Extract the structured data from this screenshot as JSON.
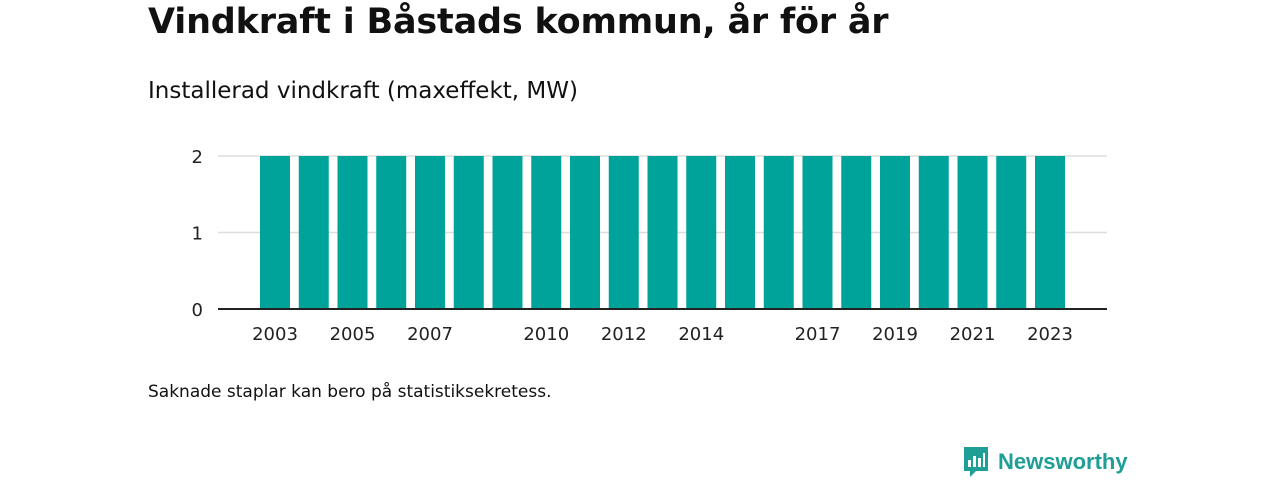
{
  "title": "Vindkraft i Båstads kommun, år för år",
  "subtitle": "Installerad vindkraft (maxeffekt, MW)",
  "note": "Saknade staplar kan bero på statistiksekretess.",
  "brand": {
    "name": "Newsworthy",
    "icon": "newsworthy-logo-icon",
    "color": "#1f9e96"
  },
  "colors": {
    "bar": "#00a39a",
    "grid": "#dddddd",
    "axis": "#222222",
    "tick_text": "#222222"
  },
  "chart_data": {
    "type": "bar",
    "categories": [
      "2003",
      "2004",
      "2005",
      "2006",
      "2007",
      "2008",
      "2009",
      "2010",
      "2011",
      "2012",
      "2013",
      "2014",
      "2015",
      "2016",
      "2017",
      "2018",
      "2019",
      "2020",
      "2021",
      "2022",
      "2023"
    ],
    "values": [
      2,
      2,
      2,
      2,
      2,
      2,
      2,
      2,
      2,
      2,
      2,
      2,
      2,
      2,
      2,
      2,
      2,
      2,
      2,
      2,
      2
    ],
    "x_tick_labels": [
      "2003",
      "2005",
      "2007",
      "2010",
      "2012",
      "2014",
      "2017",
      "2019",
      "2021",
      "2023"
    ],
    "y_ticks": [
      0,
      1,
      2
    ],
    "ylim": [
      0,
      2
    ],
    "xlabel": "",
    "ylabel": "",
    "grid": true
  }
}
